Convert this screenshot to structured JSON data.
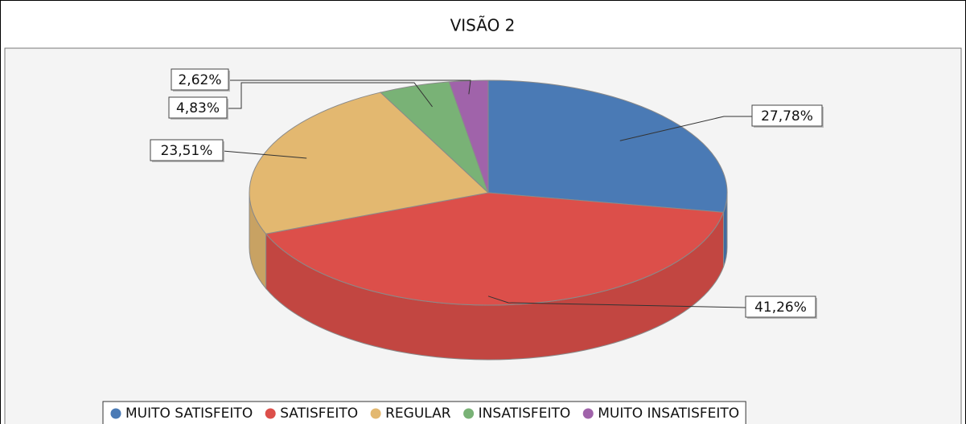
{
  "chart_data": {
    "type": "pie3d",
    "title": "VISÃO 2",
    "categories": [
      "MUITO SATISFEITO",
      "SATISFEITO",
      "REGULAR",
      "INSATISFEITO",
      "MUITO INSATISFEITO"
    ],
    "values": [
      27.78,
      41.26,
      23.51,
      4.83,
      2.62
    ],
    "value_labels": [
      "27,78%",
      "41,26%",
      "23,51%",
      "4,83%",
      "2,62%"
    ],
    "colors": [
      "#4a7ab5",
      "#dc4f4a",
      "#e3b870",
      "#79b276",
      "#a063aa"
    ],
    "legend": "bottom"
  }
}
